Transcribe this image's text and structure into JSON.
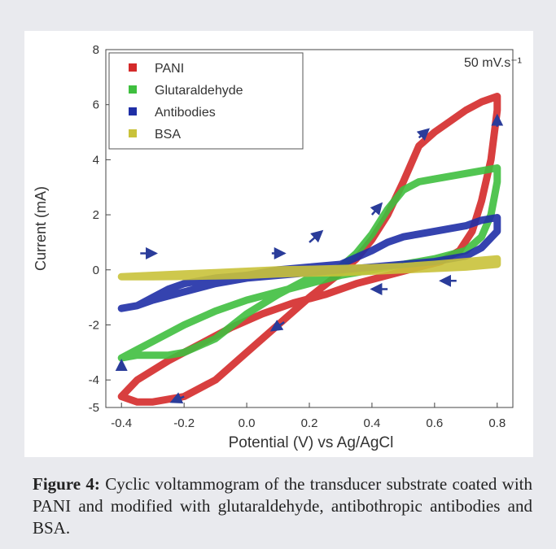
{
  "chart_data": {
    "type": "line",
    "title": "",
    "xlabel": "Potential (V) vs Ag/AgCl",
    "ylabel": "Current (mA)",
    "annotation": "50 mV.s⁻¹",
    "xlim": [
      -0.45,
      0.85
    ],
    "ylim": [
      -5,
      8
    ],
    "x_ticks": [
      "-0.4",
      "-0.2",
      "0.0",
      "0.2",
      "0.4",
      "0.6",
      "0.8"
    ],
    "x_tick_values": [
      -0.4,
      -0.2,
      0.0,
      0.2,
      0.4,
      0.6,
      0.8
    ],
    "y_ticks": [
      "-5",
      "-4",
      "-2",
      "0",
      "2",
      "4",
      "6",
      "8"
    ],
    "y_tick_values": [
      -5,
      -4,
      -2,
      0,
      2,
      4,
      6,
      8
    ],
    "legend_position": "top-left",
    "series": [
      {
        "name": "PANI",
        "color": "#d42a2a",
        "x": [
          -0.4,
          -0.35,
          -0.3,
          -0.2,
          -0.1,
          0.0,
          0.1,
          0.2,
          0.3,
          0.35,
          0.4,
          0.45,
          0.5,
          0.55,
          0.6,
          0.65,
          0.7,
          0.75,
          0.8,
          0.8,
          0.78,
          0.75,
          0.72,
          0.68,
          0.62,
          0.55,
          0.45,
          0.35,
          0.25,
          0.15,
          0.05,
          -0.05,
          -0.15,
          -0.25,
          -0.35,
          -0.4
        ],
        "y": [
          -4.6,
          -4.8,
          -4.8,
          -4.6,
          -4.0,
          -3.0,
          -2.0,
          -1.0,
          -0.1,
          0.4,
          1.1,
          2.0,
          3.2,
          4.5,
          5.0,
          5.4,
          5.8,
          6.1,
          6.3,
          5.8,
          4.0,
          2.5,
          1.4,
          0.7,
          0.3,
          0.1,
          -0.2,
          -0.5,
          -0.9,
          -1.2,
          -1.6,
          -2.1,
          -2.7,
          -3.3,
          -4.0,
          -4.6
        ]
      },
      {
        "name": "Glutaraldehyde",
        "color": "#3fbf3f",
        "x": [
          -0.4,
          -0.35,
          -0.3,
          -0.25,
          -0.2,
          -0.1,
          0.0,
          0.1,
          0.2,
          0.3,
          0.35,
          0.4,
          0.45,
          0.5,
          0.55,
          0.6,
          0.65,
          0.7,
          0.75,
          0.8,
          0.8,
          0.78,
          0.75,
          0.7,
          0.6,
          0.5,
          0.4,
          0.3,
          0.2,
          0.1,
          0.0,
          -0.1,
          -0.2,
          -0.3,
          -0.35,
          -0.4
        ],
        "y": [
          -3.2,
          -3.1,
          -3.1,
          -3.1,
          -3.0,
          -2.5,
          -1.6,
          -0.9,
          -0.3,
          0.1,
          0.6,
          1.3,
          2.2,
          2.9,
          3.2,
          3.3,
          3.4,
          3.5,
          3.6,
          3.7,
          3.2,
          2.0,
          1.2,
          0.7,
          0.4,
          0.2,
          0.0,
          -0.2,
          -0.5,
          -0.8,
          -1.1,
          -1.5,
          -2.0,
          -2.6,
          -2.9,
          -3.2
        ]
      },
      {
        "name": "Antibodies",
        "color": "#1f2fa6",
        "x": [
          -0.4,
          -0.35,
          -0.3,
          -0.25,
          -0.2,
          -0.15,
          -0.1,
          -0.05,
          0.0,
          0.1,
          0.2,
          0.3,
          0.4,
          0.45,
          0.5,
          0.55,
          0.6,
          0.7,
          0.75,
          0.8,
          0.8,
          0.75,
          0.7,
          0.6,
          0.5,
          0.4,
          0.3,
          0.2,
          0.1,
          0.0,
          -0.1,
          -0.2,
          -0.3,
          -0.35,
          -0.4
        ],
        "y": [
          -1.4,
          -1.3,
          -1.0,
          -0.7,
          -0.5,
          -0.4,
          -0.3,
          -0.25,
          -0.2,
          0.0,
          0.1,
          0.2,
          0.7,
          1.0,
          1.2,
          1.3,
          1.4,
          1.6,
          1.8,
          1.9,
          1.4,
          0.8,
          0.5,
          0.3,
          0.2,
          0.1,
          0.0,
          -0.1,
          -0.2,
          -0.3,
          -0.5,
          -0.8,
          -1.1,
          -1.3,
          -1.4
        ]
      },
      {
        "name": "BSA",
        "color": "#c9c23a",
        "x": [
          -0.4,
          -0.3,
          -0.2,
          -0.1,
          0.0,
          0.1,
          0.2,
          0.3,
          0.4,
          0.5,
          0.6,
          0.7,
          0.8,
          0.8,
          0.7,
          0.6,
          0.5,
          0.4,
          0.3,
          0.2,
          0.1,
          0.0,
          -0.1,
          -0.2,
          -0.3,
          -0.4
        ],
        "y": [
          -0.25,
          -0.2,
          -0.15,
          -0.1,
          -0.05,
          0.0,
          0.02,
          0.05,
          0.08,
          0.12,
          0.2,
          0.3,
          0.4,
          0.2,
          0.1,
          0.05,
          0.0,
          -0.05,
          -0.1,
          -0.12,
          -0.15,
          -0.2,
          -0.22,
          -0.24,
          -0.25,
          -0.25
        ]
      }
    ],
    "arrows": [
      {
        "x": -0.34,
        "y": 0.6,
        "dx": 0.05,
        "dy": 0
      },
      {
        "x": 0.08,
        "y": 0.6,
        "dx": 0.04,
        "dy": 0
      },
      {
        "x": 0.2,
        "y": 1.0,
        "dx": 0.04,
        "dy": 0.4
      },
      {
        "x": 0.4,
        "y": 2.0,
        "dx": 0.03,
        "dy": 0.4
      },
      {
        "x": 0.55,
        "y": 4.8,
        "dx": 0.03,
        "dy": 0.3
      },
      {
        "x": 0.67,
        "y": -0.4,
        "dx": -0.05,
        "dy": 0
      },
      {
        "x": 0.45,
        "y": -0.7,
        "dx": -0.05,
        "dy": 0
      },
      {
        "x": 0.12,
        "y": -1.9,
        "dx": -0.04,
        "dy": -0.3
      },
      {
        "x": -0.2,
        "y": -4.6,
        "dx": -0.04,
        "dy": -0.2
      },
      {
        "x": -0.4,
        "y": -3.6,
        "dx": 0,
        "dy": 0.3
      },
      {
        "x": 0.8,
        "y": 5.2,
        "dx": 0,
        "dy": 0.4
      }
    ]
  },
  "caption": {
    "label": "Figure 4:",
    "text": " Cyclic voltammogram of the transducer substrate coated with PANI and modified with glutaraldehyde, antibothropic antibodies and BSA."
  }
}
